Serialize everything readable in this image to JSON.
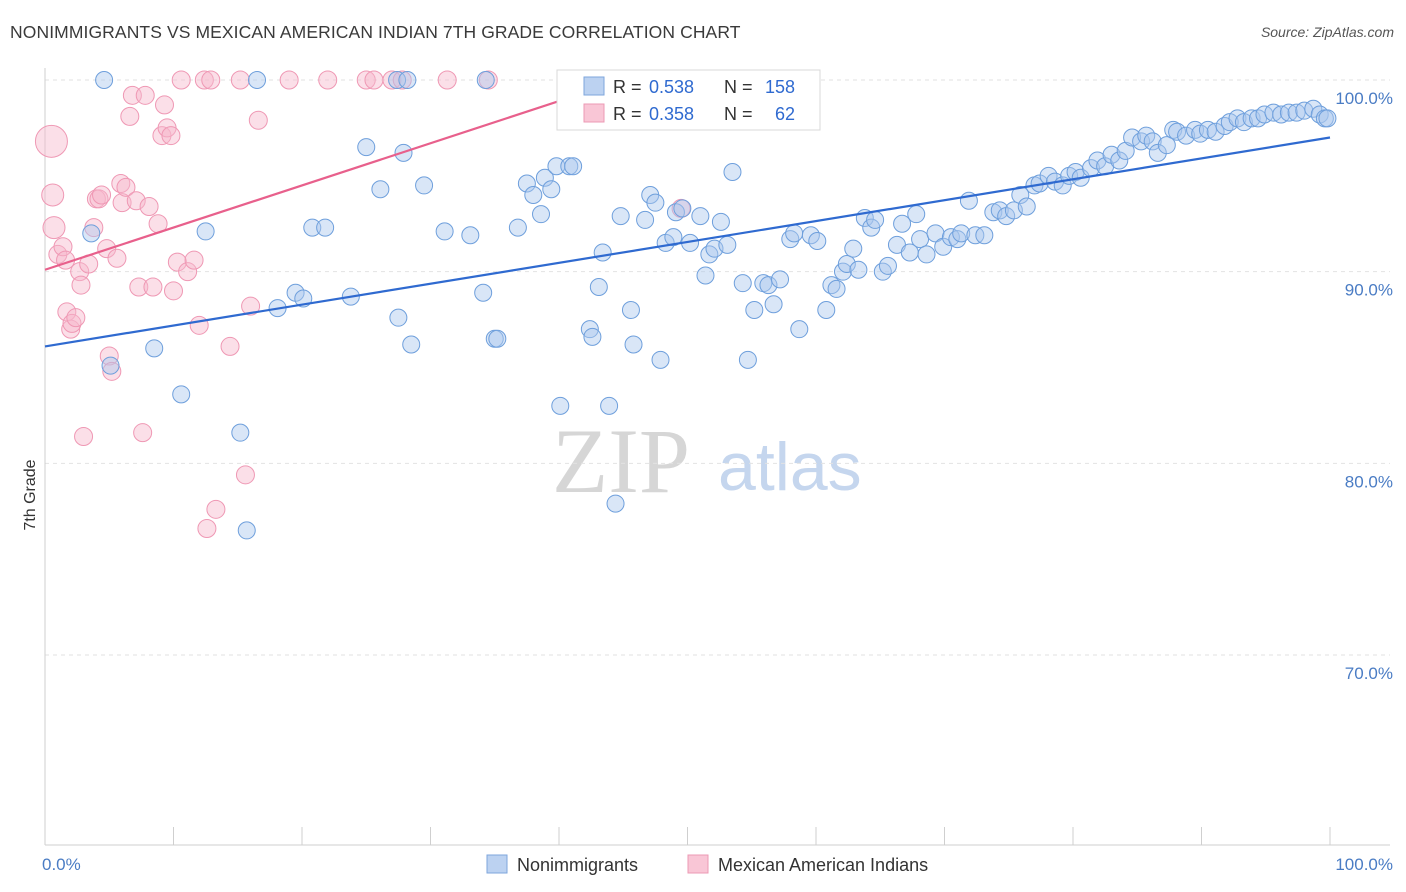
{
  "header": {
    "title": "NONIMMIGRANTS VS MEXICAN AMERICAN INDIAN 7TH GRADE CORRELATION CHART",
    "source": "Source: ZipAtlas.com"
  },
  "watermark": {
    "zip": "ZIP",
    "atlas": "atlas"
  },
  "chart_data": {
    "type": "scatter",
    "title": "NONIMMIGRANTS VS MEXICAN AMERICAN INDIAN 7TH GRADE CORRELATION CHART",
    "ylabel": "7th Grade",
    "xlabel": "",
    "x_tick_labels": [
      "0.0%",
      "100.0%"
    ],
    "y_tick_labels": [
      "100.0%",
      "90.0%",
      "80.0%",
      "70.0%"
    ],
    "y_ticks": [
      100,
      90,
      80,
      70
    ],
    "xlim": [
      0,
      100
    ],
    "ylim": [
      61.5,
      100.5
    ],
    "grid": true,
    "legend_position": "top-center",
    "colors": {
      "blue": "#6e9fdc",
      "blue_line": "#2f6ad0",
      "pink": "#ef98b4",
      "pink_line": "#e8608c"
    },
    "stats": [
      {
        "r_label": "R = ",
        "r": "0.538",
        "n_label": "N = ",
        "n": "158"
      },
      {
        "r_label": "R = ",
        "r": "0.358",
        "n_label": "N = ",
        "n": "62"
      }
    ],
    "series": [
      {
        "name": "Nonimmigrants",
        "trend": [
          [
            0,
            86.1
          ],
          [
            100,
            97.0
          ]
        ],
        "points": [
          [
            4.6,
            100
          ],
          [
            16.5,
            100
          ],
          [
            27.4,
            100
          ],
          [
            28.2,
            100
          ],
          [
            34.3,
            100
          ],
          [
            3.6,
            92.0
          ],
          [
            5.1,
            85.1
          ],
          [
            8.5,
            86.0
          ],
          [
            10.6,
            83.6
          ],
          [
            12.5,
            92.1
          ],
          [
            15.2,
            81.6
          ],
          [
            15.7,
            76.5
          ],
          [
            18.1,
            88.1
          ],
          [
            19.5,
            88.9
          ],
          [
            20.1,
            88.6
          ],
          [
            20.8,
            92.3
          ],
          [
            21.8,
            92.3
          ],
          [
            23.8,
            88.7
          ],
          [
            25.0,
            96.5
          ],
          [
            26.1,
            94.3
          ],
          [
            27.5,
            87.6
          ],
          [
            27.9,
            96.2
          ],
          [
            28.5,
            86.2
          ],
          [
            29.5,
            94.5
          ],
          [
            31.1,
            92.1
          ],
          [
            33.1,
            91.9
          ],
          [
            34.1,
            88.9
          ],
          [
            35.0,
            86.5
          ],
          [
            35.2,
            86.5
          ],
          [
            36.8,
            92.3
          ],
          [
            37.5,
            94.6
          ],
          [
            38.0,
            94.0
          ],
          [
            38.6,
            93.0
          ],
          [
            38.9,
            94.9
          ],
          [
            39.4,
            94.3
          ],
          [
            39.8,
            95.5
          ],
          [
            40.1,
            83.0
          ],
          [
            40.8,
            95.5
          ],
          [
            41.1,
            95.5
          ],
          [
            42.4,
            87.0
          ],
          [
            42.6,
            86.6
          ],
          [
            43.1,
            89.2
          ],
          [
            43.4,
            91.0
          ],
          [
            43.9,
            83.0
          ],
          [
            44.4,
            77.9
          ],
          [
            44.8,
            92.9
          ],
          [
            45.6,
            88.0
          ],
          [
            45.8,
            86.2
          ],
          [
            46.7,
            92.7
          ],
          [
            47.1,
            94.0
          ],
          [
            47.5,
            93.6
          ],
          [
            47.9,
            85.4
          ],
          [
            48.3,
            91.5
          ],
          [
            48.9,
            91.8
          ],
          [
            49.1,
            93.1
          ],
          [
            49.6,
            93.3
          ],
          [
            50.2,
            91.5
          ],
          [
            51.0,
            92.9
          ],
          [
            51.4,
            89.8
          ],
          [
            51.7,
            90.9
          ],
          [
            52.1,
            91.2
          ],
          [
            52.6,
            92.6
          ],
          [
            53.5,
            95.2
          ],
          [
            53.1,
            91.4
          ],
          [
            54.3,
            89.4
          ],
          [
            54.7,
            85.4
          ],
          [
            55.2,
            88.0
          ],
          [
            55.9,
            89.4
          ],
          [
            56.3,
            89.3
          ],
          [
            56.7,
            88.3
          ],
          [
            57.2,
            89.6
          ],
          [
            58.0,
            91.7
          ],
          [
            58.3,
            92.0
          ],
          [
            58.7,
            87.0
          ],
          [
            59.6,
            91.9
          ],
          [
            60.1,
            91.6
          ],
          [
            60.8,
            88.0
          ],
          [
            61.2,
            89.3
          ],
          [
            61.6,
            89.1
          ],
          [
            62.1,
            90.0
          ],
          [
            62.4,
            90.4
          ],
          [
            62.9,
            91.2
          ],
          [
            63.3,
            90.1
          ],
          [
            63.8,
            92.8
          ],
          [
            64.3,
            92.3
          ],
          [
            64.6,
            92.7
          ],
          [
            65.2,
            90.0
          ],
          [
            65.6,
            90.3
          ],
          [
            66.3,
            91.4
          ],
          [
            66.7,
            92.5
          ],
          [
            67.3,
            91.0
          ],
          [
            67.8,
            93.0
          ],
          [
            68.1,
            91.7
          ],
          [
            68.6,
            90.9
          ],
          [
            69.3,
            92.0
          ],
          [
            69.9,
            91.3
          ],
          [
            70.5,
            91.8
          ],
          [
            71.0,
            91.7
          ],
          [
            71.3,
            92.0
          ],
          [
            71.9,
            93.7
          ],
          [
            72.4,
            91.9
          ],
          [
            73.1,
            91.9
          ],
          [
            73.8,
            93.1
          ],
          [
            74.3,
            93.2
          ],
          [
            74.8,
            92.9
          ],
          [
            75.4,
            93.2
          ],
          [
            75.9,
            94.0
          ],
          [
            76.4,
            93.4
          ],
          [
            77.0,
            94.5
          ],
          [
            77.4,
            94.6
          ],
          [
            78.1,
            95.0
          ],
          [
            78.6,
            94.7
          ],
          [
            79.2,
            94.5
          ],
          [
            79.7,
            95.0
          ],
          [
            80.2,
            95.2
          ],
          [
            80.6,
            94.9
          ],
          [
            81.4,
            95.4
          ],
          [
            81.9,
            95.8
          ],
          [
            82.5,
            95.5
          ],
          [
            83.0,
            96.1
          ],
          [
            83.6,
            95.8
          ],
          [
            84.1,
            96.3
          ],
          [
            84.6,
            97.0
          ],
          [
            85.3,
            96.8
          ],
          [
            85.7,
            97.1
          ],
          [
            86.2,
            96.8
          ],
          [
            86.6,
            96.2
          ],
          [
            87.3,
            96.6
          ],
          [
            87.8,
            97.4
          ],
          [
            88.1,
            97.3
          ],
          [
            88.8,
            97.1
          ],
          [
            89.5,
            97.4
          ],
          [
            89.9,
            97.2
          ],
          [
            90.5,
            97.4
          ],
          [
            91.1,
            97.3
          ],
          [
            91.8,
            97.6
          ],
          [
            92.2,
            97.8
          ],
          [
            92.8,
            98.0
          ],
          [
            93.3,
            97.8
          ],
          [
            93.9,
            98.0
          ],
          [
            94.4,
            98.0
          ],
          [
            94.9,
            98.2
          ],
          [
            95.6,
            98.3
          ],
          [
            96.2,
            98.2
          ],
          [
            96.8,
            98.3
          ],
          [
            97.4,
            98.3
          ],
          [
            98.0,
            98.4
          ],
          [
            98.7,
            98.5
          ],
          [
            99.2,
            98.2
          ],
          [
            99.6,
            98.0
          ],
          [
            99.8,
            98.0
          ]
        ]
      },
      {
        "name": "Mexican American Indians",
        "trend": [
          [
            0,
            90.1
          ],
          [
            45.0,
            100.0
          ]
        ],
        "points": [
          [
            0.5,
            96.8
          ],
          [
            0.6,
            94.0
          ],
          [
            0.7,
            92.3
          ],
          [
            1.0,
            90.9
          ],
          [
            1.4,
            91.3
          ],
          [
            1.6,
            90.6
          ],
          [
            1.7,
            87.9
          ],
          [
            2.0,
            87.0
          ],
          [
            2.1,
            87.3
          ],
          [
            2.4,
            87.6
          ],
          [
            2.7,
            90.0
          ],
          [
            2.8,
            89.3
          ],
          [
            3.0,
            81.4
          ],
          [
            3.4,
            90.4
          ],
          [
            3.8,
            92.3
          ],
          [
            4.0,
            93.8
          ],
          [
            4.2,
            93.8
          ],
          [
            4.4,
            94.0
          ],
          [
            4.8,
            91.2
          ],
          [
            5.0,
            85.6
          ],
          [
            5.2,
            84.8
          ],
          [
            5.6,
            90.7
          ],
          [
            5.9,
            94.6
          ],
          [
            6.0,
            93.6
          ],
          [
            6.3,
            94.4
          ],
          [
            6.6,
            98.1
          ],
          [
            6.8,
            99.2
          ],
          [
            7.1,
            93.7
          ],
          [
            7.3,
            89.2
          ],
          [
            7.6,
            81.6
          ],
          [
            7.8,
            99.2
          ],
          [
            8.1,
            93.4
          ],
          [
            8.4,
            89.2
          ],
          [
            8.8,
            92.5
          ],
          [
            9.1,
            97.1
          ],
          [
            9.3,
            98.7
          ],
          [
            9.5,
            97.5
          ],
          [
            9.8,
            97.1
          ],
          [
            10.0,
            89.0
          ],
          [
            10.3,
            90.5
          ],
          [
            10.6,
            100.0
          ],
          [
            11.1,
            90.0
          ],
          [
            11.6,
            90.6
          ],
          [
            12.0,
            87.2
          ],
          [
            12.4,
            100
          ],
          [
            12.6,
            76.6
          ],
          [
            12.9,
            100
          ],
          [
            13.3,
            77.6
          ],
          [
            14.4,
            86.1
          ],
          [
            15.2,
            100
          ],
          [
            15.6,
            79.4
          ],
          [
            16.0,
            88.2
          ],
          [
            16.6,
            97.9
          ],
          [
            19.0,
            100
          ],
          [
            22.0,
            100
          ],
          [
            25.0,
            100
          ],
          [
            25.6,
            100
          ],
          [
            27.0,
            100
          ],
          [
            27.8,
            100
          ],
          [
            31.3,
            100
          ],
          [
            34.5,
            100
          ],
          [
            49.5,
            93.3
          ]
        ]
      }
    ]
  },
  "bottom_legend": [
    {
      "label": "Nonimmigrants"
    },
    {
      "label": "Mexican American Indians"
    }
  ]
}
